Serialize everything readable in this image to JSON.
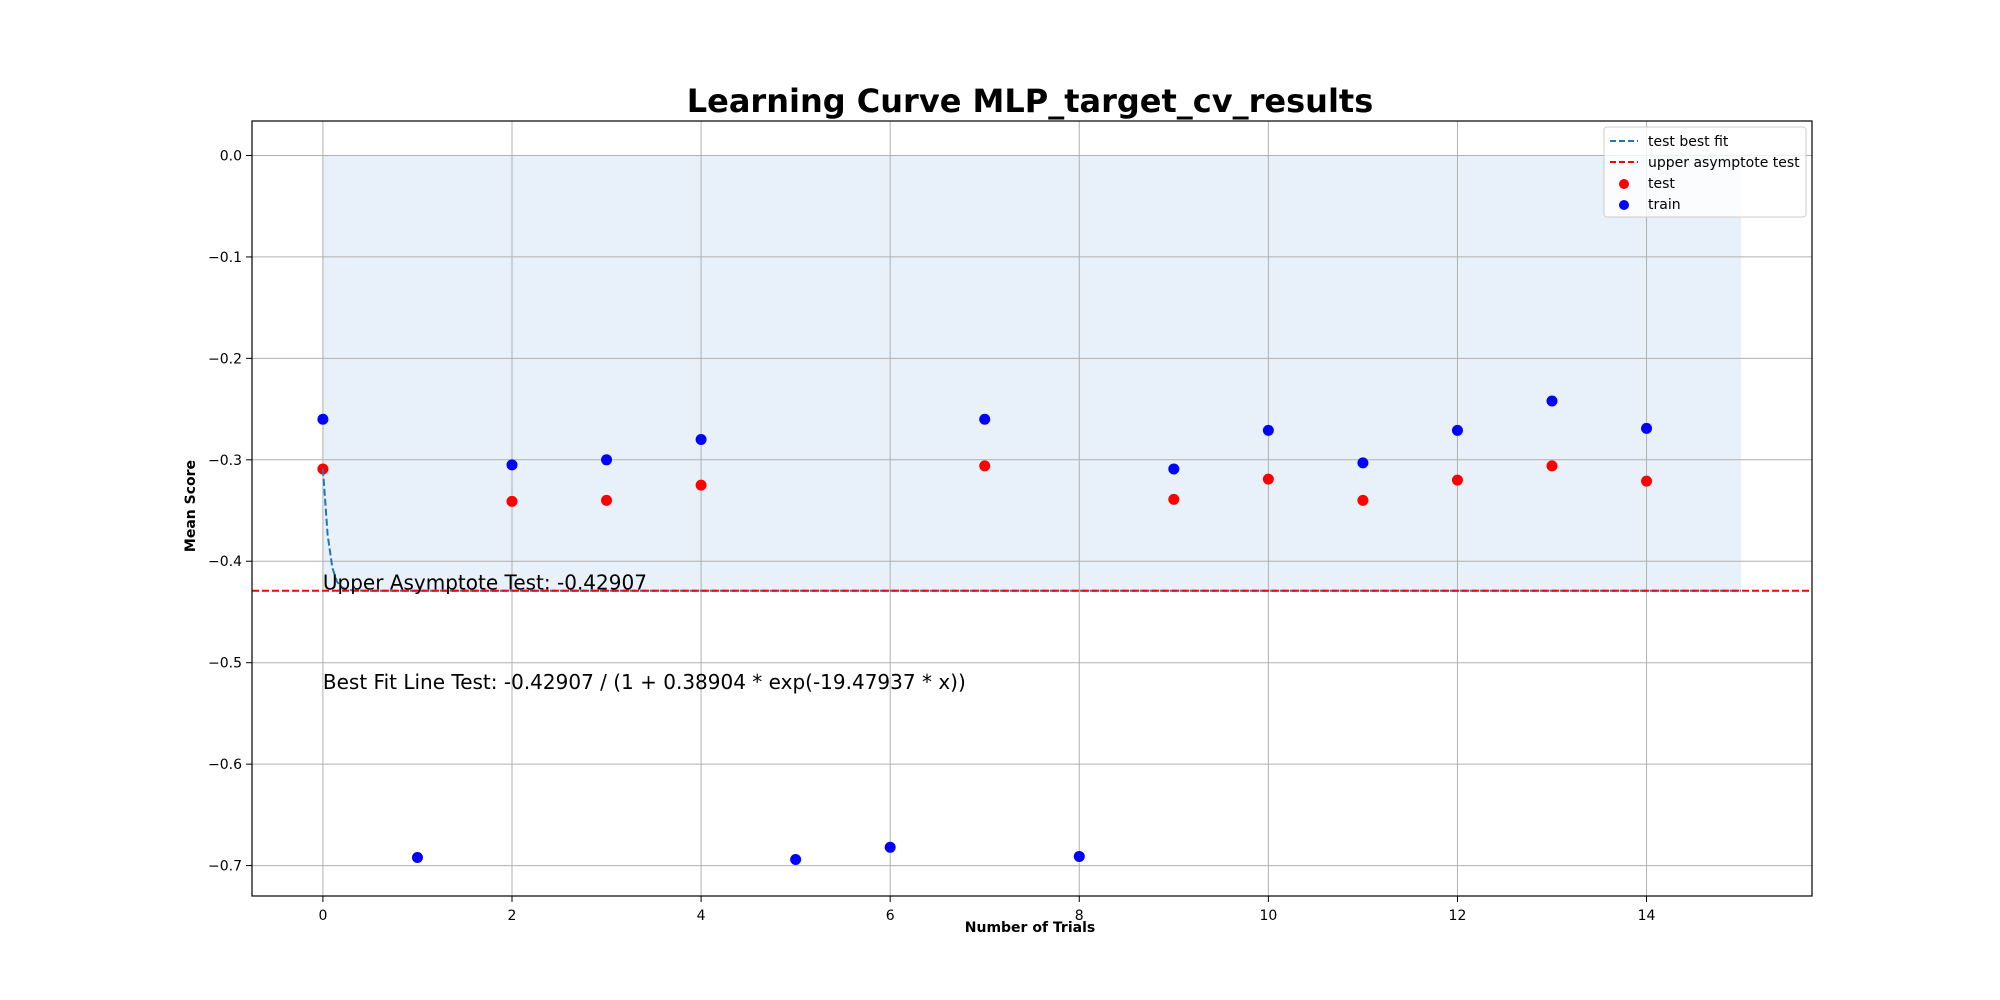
{
  "chart_data": {
    "type": "scatter",
    "title": "Learning Curve MLP_target_cv_results",
    "xlabel": "Number of Trials",
    "ylabel": "Mean Score",
    "xlim": [
      -0.75,
      15.75
    ],
    "ylim": [
      -0.73,
      0.034
    ],
    "xticks": [
      0,
      2,
      4,
      6,
      8,
      10,
      12,
      14
    ],
    "yticks": [
      0.0,
      -0.1,
      -0.2,
      -0.3,
      -0.4,
      -0.5,
      -0.6,
      -0.7
    ],
    "xtick_labels": [
      "0",
      "2",
      "4",
      "6",
      "8",
      "10",
      "12",
      "14"
    ],
    "ytick_labels": [
      "0.0",
      "−0.1",
      "−0.2",
      "−0.3",
      "−0.4",
      "−0.5",
      "−0.6",
      "−0.7"
    ],
    "grid": true,
    "legend_position": "upper right",
    "shaded_region": {
      "x": [
        0,
        15
      ],
      "y": [
        -0.42907,
        0.0
      ],
      "color": "#c6dbef"
    },
    "series": [
      {
        "name": "train",
        "kind": "scatter",
        "color": "#0000ff",
        "x": [
          0,
          1,
          2,
          3,
          4,
          5,
          6,
          7,
          8,
          9,
          10,
          11,
          12,
          13,
          14
        ],
        "y": [
          -0.26,
          -0.692,
          -0.305,
          -0.3,
          -0.28,
          -0.694,
          -0.682,
          -0.26,
          -0.691,
          -0.309,
          -0.271,
          -0.303,
          -0.271,
          -0.242,
          -0.269
        ]
      },
      {
        "name": "test",
        "kind": "scatter",
        "color": "#ff0000",
        "x": [
          0,
          2,
          3,
          4,
          7,
          9,
          10,
          11,
          12,
          13,
          14
        ],
        "y": [
          -0.309,
          -0.341,
          -0.34,
          -0.325,
          -0.306,
          -0.339,
          -0.319,
          -0.34,
          -0.32,
          -0.306,
          -0.321
        ]
      },
      {
        "name": "test best fit",
        "kind": "line",
        "style": "dashed",
        "color": "#1f77b4",
        "formula": {
          "a": -0.42907,
          "b": 0.38904,
          "c": -19.47937
        }
      },
      {
        "name": "upper asymptote test",
        "kind": "hline",
        "style": "dashed",
        "color": "#ff0000",
        "y": -0.42907
      }
    ],
    "annotations": {
      "asymptote": "Upper Asymptote Test: -0.42907",
      "best_fit": "Best Fit Line Test: -0.42907 / (1 + 0.38904 * exp(-19.47937 * x))"
    },
    "legend": {
      "items": [
        {
          "label": "test best fit",
          "kind": "line",
          "color": "#1f77b4"
        },
        {
          "label": "upper asymptote test",
          "kind": "line",
          "color": "#ff0000"
        },
        {
          "label": "test",
          "kind": "dot",
          "color": "#ff0000"
        },
        {
          "label": "train",
          "kind": "dot",
          "color": "#0000ff"
        }
      ]
    }
  }
}
